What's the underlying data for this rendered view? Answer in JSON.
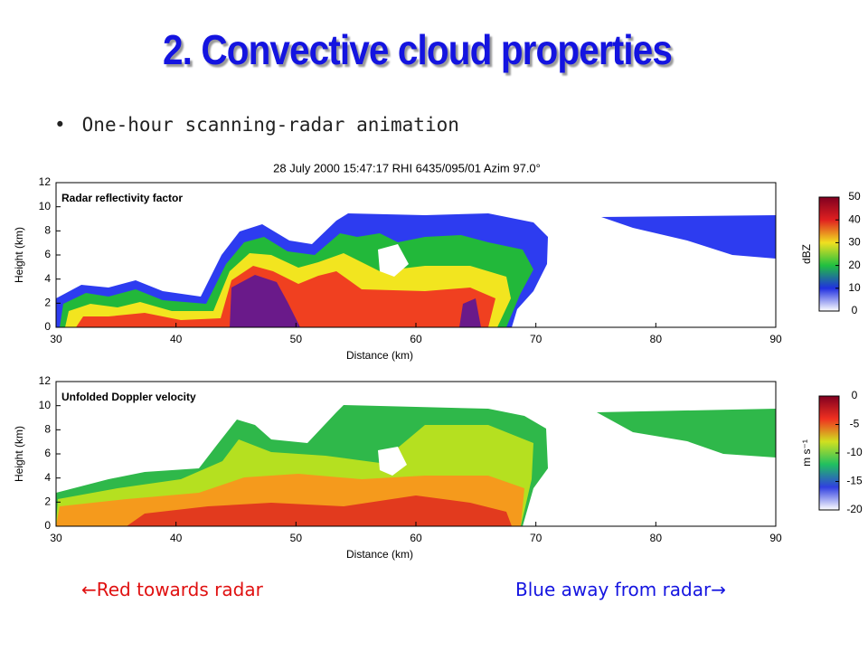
{
  "title": "2. Convective cloud properties",
  "bullet": "One-hour scanning-radar animation",
  "figure": {
    "header": "28 July 2000 15:47:17 RHI 6435/095/01 Azim  97.0°",
    "panels": [
      {
        "label": "Radar reflectivity factor",
        "y_label": "Height (km)",
        "x_label": "Distance (km)",
        "x_ticks": [
          "30",
          "40",
          "50",
          "60",
          "70",
          "80",
          "90"
        ],
        "y_ticks": [
          "0",
          "2",
          "4",
          "6",
          "8",
          "10",
          "12"
        ],
        "colorbar_label": "dBZ",
        "colorbar_ticks": [
          "0",
          "10",
          "20",
          "30",
          "40",
          "50"
        ]
      },
      {
        "label": "Unfolded Doppler velocity",
        "y_label": "Height (km)",
        "x_label": "Distance (km)",
        "x_ticks": [
          "30",
          "40",
          "50",
          "60",
          "70",
          "80",
          "90"
        ],
        "y_ticks": [
          "0",
          "2",
          "4",
          "6",
          "8",
          "10",
          "12"
        ],
        "colorbar_label": "m s⁻¹",
        "colorbar_ticks": [
          "-20",
          "-15",
          "-10",
          "-5",
          "0"
        ]
      }
    ]
  },
  "captions": {
    "left": "←Red towards radar",
    "right": "Blue away from radar→"
  }
}
